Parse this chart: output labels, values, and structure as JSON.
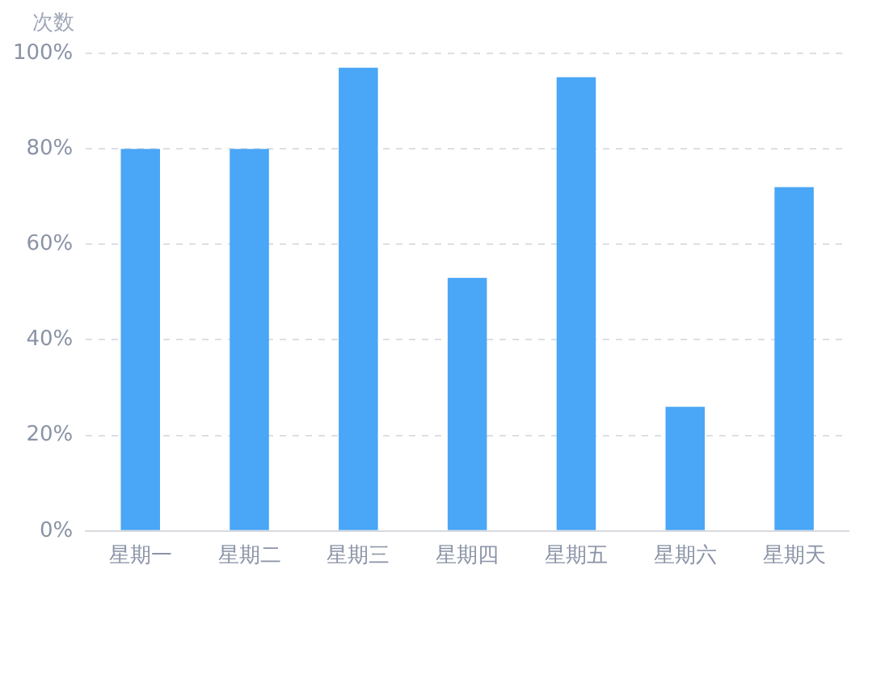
{
  "chart_data": {
    "type": "bar",
    "ylabel": "次数",
    "categories": [
      "星期一",
      "星期二",
      "星期三",
      "星期四",
      "星期五",
      "星期六",
      "星期天"
    ],
    "values": [
      80,
      80,
      97,
      53,
      95,
      26,
      72
    ],
    "color": "#4aa6f6",
    "ylim": [
      0,
      100
    ],
    "yticks": [
      {
        "value": 0,
        "label": "0%"
      },
      {
        "value": 20,
        "label": "20%"
      },
      {
        "value": 40,
        "label": "40%"
      },
      {
        "value": 60,
        "label": "60%"
      },
      {
        "value": 80,
        "label": "80%"
      },
      {
        "value": 100,
        "label": "100%"
      }
    ],
    "grid": "y",
    "legend": false
  }
}
